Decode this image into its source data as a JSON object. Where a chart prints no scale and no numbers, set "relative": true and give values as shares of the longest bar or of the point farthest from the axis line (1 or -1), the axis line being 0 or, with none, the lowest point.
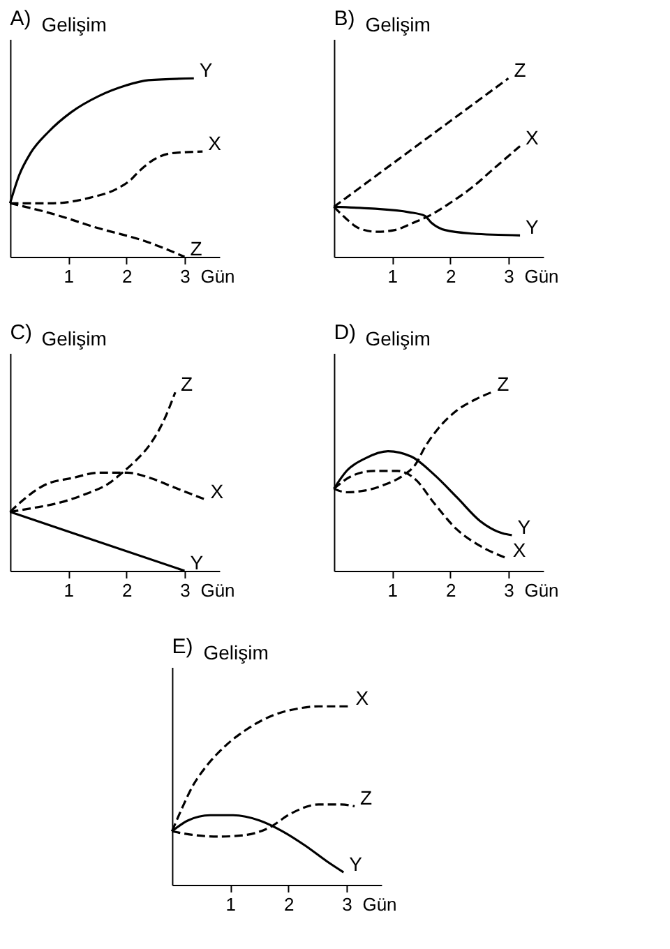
{
  "chart_data": [
    {
      "type": "line",
      "title": "A)",
      "ylabel": "Gelişim",
      "xlabel": "Gün",
      "relative": true,
      "xlim": [
        0,
        3.6
      ],
      "xticks": [
        1,
        2,
        3
      ],
      "series": [
        {
          "name": "X",
          "color": "#000000",
          "line_style": "dashed",
          "x": [
            0,
            0.74,
            1.36,
            1.83,
            2.07,
            2.22,
            2.45,
            2.77,
            3.31
          ],
          "values": [
            0.3,
            0.3,
            0.33,
            0.38,
            0.43,
            0.48,
            0.54,
            0.58,
            0.59
          ]
        },
        {
          "name": "Y",
          "color": "#000000",
          "line_style": "solid",
          "x": [
            0,
            0.16,
            0.35,
            0.66,
            1.05,
            1.52,
            1.99,
            2.38,
            3.16
          ],
          "values": [
            0.3,
            0.46,
            0.58,
            0.7,
            0.81,
            0.9,
            0.96,
            0.99,
            1.0
          ]
        },
        {
          "name": "Z",
          "color": "#000000",
          "line_style": "dashed",
          "x": [
            0,
            0.74,
            1.52,
            2.3,
            3.0
          ],
          "values": [
            0.3,
            0.24,
            0.16,
            0.09,
            0
          ]
        }
      ]
    },
    {
      "type": "line",
      "title": "B)",
      "ylabel": "Gelişim",
      "xlabel": "Gün",
      "relative": true,
      "xlim": [
        0,
        3.6
      ],
      "xticks": [
        1,
        2,
        3
      ],
      "series": [
        {
          "name": "X",
          "color": "#000000",
          "line_style": "dashed",
          "x": [
            0,
            0.19,
            0.43,
            0.74,
            1.05,
            1.36,
            1.64,
            1.99,
            2.38,
            2.77,
            3.2
          ],
          "values": [
            0.28,
            0.22,
            0.16,
            0.14,
            0.15,
            0.19,
            0.23,
            0.3,
            0.39,
            0.5,
            0.62
          ]
        },
        {
          "name": "Y",
          "color": "#000000",
          "line_style": "solid",
          "x": [
            0,
            0.66,
            1.29,
            1.56,
            1.68,
            1.91,
            2.38,
            3.2
          ],
          "values": [
            0.28,
            0.27,
            0.25,
            0.23,
            0.19,
            0.15,
            0.13,
            0.12
          ]
        },
        {
          "name": "Z",
          "color": "#000000",
          "line_style": "dashed",
          "x": [
            0,
            1.5,
            3.0
          ],
          "values": [
            0.28,
            0.64,
            1.0
          ]
        }
      ]
    },
    {
      "type": "line",
      "title": "C)",
      "ylabel": "Gelişim",
      "xlabel": "Gün",
      "relative": true,
      "xlim": [
        0,
        3.6
      ],
      "xticks": [
        1,
        2,
        3
      ],
      "series": [
        {
          "name": "X",
          "color": "#000000",
          "line_style": "dashed",
          "x": [
            0,
            0.2,
            0.59,
            1.07,
            1.54,
            2.01,
            2.41,
            2.8,
            3.35
          ],
          "values": [
            0.33,
            0.39,
            0.48,
            0.52,
            0.55,
            0.55,
            0.52,
            0.47,
            0.4
          ]
        },
        {
          "name": "Y",
          "color": "#000000",
          "line_style": "solid",
          "x": [
            0,
            3.0
          ],
          "values": [
            0.33,
            0
          ]
        },
        {
          "name": "Z",
          "color": "#000000",
          "line_style": "dashed",
          "x": [
            0,
            0.36,
            0.83,
            1.3,
            1.7,
            1.93,
            2.17,
            2.41,
            2.64,
            2.84
          ],
          "values": [
            0.33,
            0.35,
            0.38,
            0.43,
            0.49,
            0.55,
            0.62,
            0.71,
            0.84,
            1.0
          ]
        }
      ]
    },
    {
      "type": "line",
      "title": "D)",
      "ylabel": "Gelişim",
      "xlabel": "Gün",
      "relative": true,
      "xlim": [
        0,
        3.6
      ],
      "xticks": [
        1,
        2,
        3
      ],
      "series": [
        {
          "name": "X",
          "color": "#000000",
          "line_style": "dashed",
          "x": [
            0,
            0.3,
            0.69,
            1.09,
            1.41,
            1.72,
            2.12,
            2.51,
            2.98
          ],
          "values": [
            0.46,
            0.53,
            0.56,
            0.56,
            0.51,
            0.38,
            0.23,
            0.14,
            0.07
          ]
        },
        {
          "name": "Y",
          "color": "#000000",
          "line_style": "solid",
          "x": [
            0,
            0.22,
            0.54,
            0.93,
            1.33,
            1.72,
            2.12,
            2.51,
            2.9,
            3.06
          ],
          "values": [
            0.46,
            0.56,
            0.63,
            0.67,
            0.64,
            0.54,
            0.41,
            0.28,
            0.21,
            0.2
          ]
        },
        {
          "name": "Z",
          "color": "#000000",
          "line_style": "dashed",
          "x": [
            0,
            0.22,
            0.54,
            0.85,
            1.17,
            1.41,
            1.56,
            1.8,
            2.12,
            2.43,
            2.71
          ],
          "values": [
            0.46,
            0.44,
            0.45,
            0.48,
            0.53,
            0.6,
            0.69,
            0.8,
            0.9,
            0.96,
            1.0
          ]
        }
      ]
    },
    {
      "type": "line",
      "title": "E)",
      "ylabel": "Gelişim",
      "xlabel": "Gün",
      "relative": true,
      "xlim": [
        0,
        3.6
      ],
      "xticks": [
        1,
        2,
        3
      ],
      "series": [
        {
          "name": "X",
          "color": "#000000",
          "line_style": "dashed",
          "x": [
            0,
            0.16,
            0.35,
            0.58,
            0.89,
            1.28,
            1.74,
            2.21,
            2.52,
            3.06
          ],
          "values": [
            0.3,
            0.42,
            0.55,
            0.66,
            0.77,
            0.87,
            0.95,
            0.99,
            1.0,
            1.0
          ]
        },
        {
          "name": "Y",
          "color": "#000000",
          "line_style": "solid",
          "x": [
            0,
            0.27,
            0.66,
            1.05,
            1.51,
            1.9,
            2.29,
            2.67,
            2.95
          ],
          "values": [
            0.3,
            0.36,
            0.39,
            0.39,
            0.36,
            0.3,
            0.22,
            0.13,
            0.07
          ]
        },
        {
          "name": "Z",
          "color": "#000000",
          "line_style": "dashed",
          "x": [
            0,
            0.35,
            0.81,
            1.28,
            1.67,
            2.05,
            2.52,
            2.91,
            3.14
          ],
          "values": [
            0.3,
            0.28,
            0.27,
            0.28,
            0.32,
            0.4,
            0.45,
            0.45,
            0.44
          ]
        }
      ]
    }
  ]
}
